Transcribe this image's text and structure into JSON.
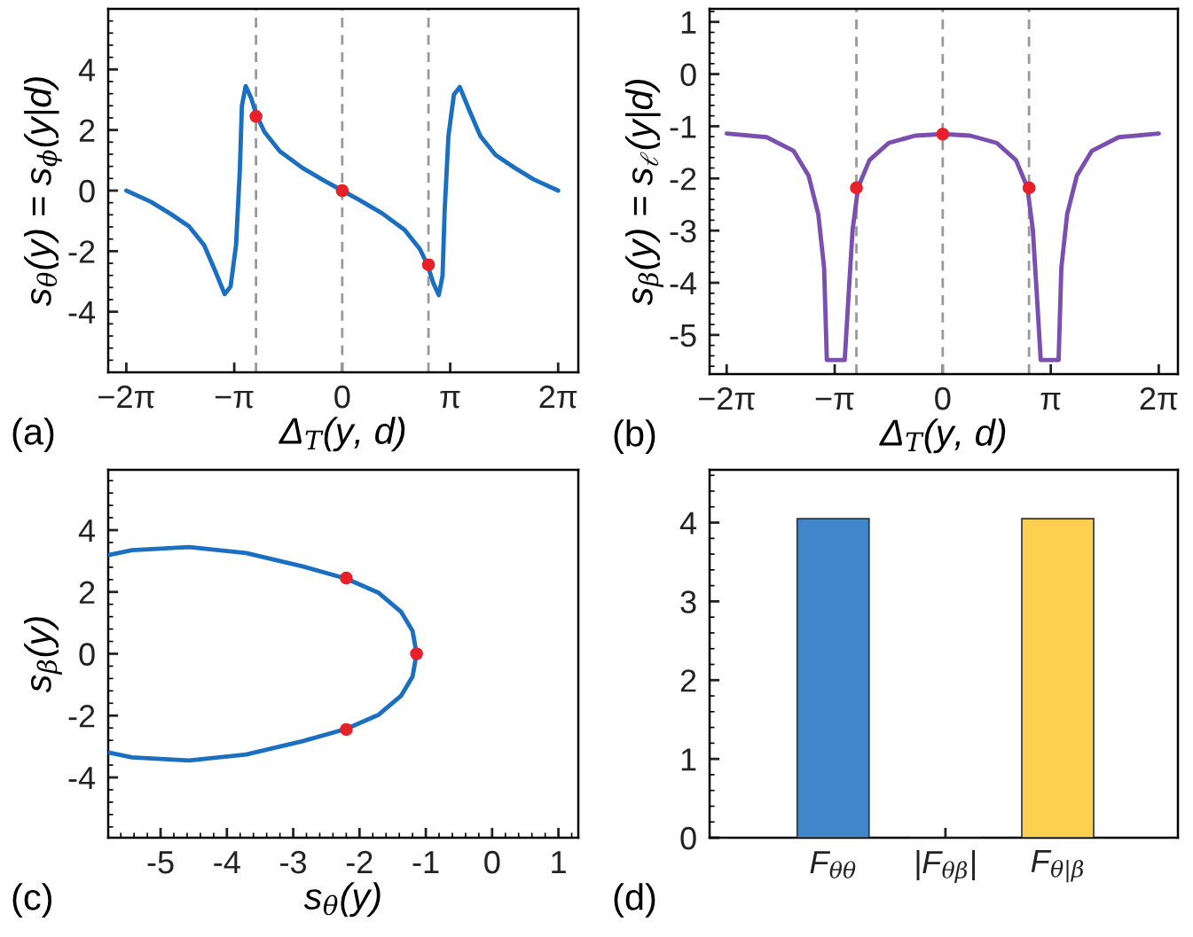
{
  "chart_data": [
    {
      "type": "line",
      "xlabel": "Δ$_{T}$(y, d)",
      "ylabel": "s$_{θ}$(y) = s$_{ϕ}$(y|d)",
      "annotations": [
        "(a)"
      ],
      "xlim": [
        -6.81,
        6.87
      ],
      "ylim": [
        -6,
        6
      ],
      "xticks": [
        {
          "value": -6.283,
          "label": "−2π"
        },
        {
          "value": -3.142,
          "label": "−π"
        },
        0,
        {
          "value": 3.142,
          "label": "π"
        },
        {
          "value": 6.283,
          "label": "2π"
        }
      ],
      "yticks": [
        -4,
        -2,
        0,
        2,
        4
      ],
      "grid": false,
      "ref_lines": [
        {
          "axis": "x",
          "value": -2.51,
          "color": "#999999",
          "line_style": "dashed"
        },
        {
          "axis": "x",
          "value": 0,
          "color": "#999999",
          "line_style": "dashed"
        },
        {
          "axis": "x",
          "value": 2.51,
          "color": "#999999",
          "line_style": "dashed"
        }
      ],
      "series": [
        {
          "type": "line",
          "color": "#1a6fc0",
          "x": [
            -6.283,
            -5.57,
            -5.02,
            -4.46,
            -4.02,
            -3.69,
            -3.42,
            -3.25,
            -3.09,
            -2.98,
            -2.92,
            -2.81,
            -2.65,
            -2.48,
            -2.26,
            -1.82,
            -1.16,
            -0.5,
            0,
            0.5,
            1.16,
            1.82,
            2.26,
            2.48,
            2.65,
            2.81,
            2.92,
            2.98,
            3.09,
            3.25,
            3.42,
            3.69,
            4.02,
            4.46,
            5.02,
            5.57,
            6.283
          ],
          "values": [
            0,
            -0.37,
            -0.75,
            -1.18,
            -1.8,
            -2.67,
            -3.42,
            -3.17,
            -1.8,
            0.68,
            2.8,
            3.45,
            3.05,
            2.45,
            1.93,
            1.3,
            0.75,
            0.31,
            0,
            -0.31,
            -0.75,
            -1.3,
            -1.93,
            -2.45,
            -3.05,
            -3.45,
            -2.8,
            -0.68,
            1.8,
            3.17,
            3.42,
            2.67,
            1.8,
            1.18,
            0.75,
            0.37,
            0
          ]
        },
        {
          "type": "scatter",
          "color": "#e8202a",
          "marker": "circle",
          "x": [
            -2.51,
            0,
            2.51
          ],
          "values": [
            2.45,
            0,
            -2.45
          ]
        }
      ]
    },
    {
      "type": "line",
      "xlabel": "Δ$_{T}$(y, d)",
      "ylabel": "s$_{β}$(y) = s$_{ℓ}$(y|d)",
      "annotations": [
        "(b)"
      ],
      "xlim": [
        -6.78,
        6.84
      ],
      "ylim": [
        -5.75,
        1.25
      ],
      "xticks": [
        {
          "value": -6.283,
          "label": "−2π"
        },
        {
          "value": -3.142,
          "label": "−π"
        },
        0,
        {
          "value": 3.142,
          "label": "π"
        },
        {
          "value": 6.283,
          "label": "2π"
        }
      ],
      "yticks": [
        -5,
        -4,
        -3,
        -2,
        -1,
        0,
        1
      ],
      "grid": false,
      "ref_lines": [
        {
          "axis": "x",
          "value": -2.51,
          "color": "#999999",
          "line_style": "dashed"
        },
        {
          "axis": "x",
          "value": 0,
          "color": "#999999",
          "line_style": "dashed"
        },
        {
          "axis": "x",
          "value": 2.51,
          "color": "#999999",
          "line_style": "dashed"
        }
      ],
      "series": [
        {
          "type": "line",
          "color": "#7b4fb0",
          "x": [
            -6.283,
            -5.12,
            -4.34,
            -3.9,
            -3.62,
            -3.45,
            -3.37,
            -2.85,
            -2.73,
            -2.62,
            -2.46,
            -2.13,
            -1.57,
            -0.8,
            0,
            0.8,
            1.57,
            2.13,
            2.46,
            2.62,
            2.73,
            2.85,
            3.37,
            3.45,
            3.62,
            3.9,
            4.34,
            5.12,
            6.283
          ],
          "values": [
            -1.14,
            -1.21,
            -1.47,
            -1.95,
            -2.68,
            -3.71,
            -5.48,
            -5.48,
            -4.15,
            -2.98,
            -2.17,
            -1.65,
            -1.32,
            -1.18,
            -1.15,
            -1.18,
            -1.32,
            -1.65,
            -2.17,
            -2.98,
            -4.15,
            -5.48,
            -5.48,
            -3.71,
            -2.68,
            -1.95,
            -1.47,
            -1.21,
            -1.14
          ]
        },
        {
          "type": "scatter",
          "color": "#e8202a",
          "marker": "circle",
          "x": [
            -2.51,
            0,
            2.51
          ],
          "values": [
            -2.18,
            -1.15,
            -2.18
          ]
        }
      ]
    },
    {
      "type": "line",
      "xlabel": "s$_{θ}$(y)",
      "ylabel": "s$_{β}$(y)",
      "annotations": [
        "(c)"
      ],
      "xlim": [
        -5.79,
        1.3
      ],
      "ylim": [
        -5.95,
        5.95
      ],
      "xticks": [
        -5,
        -4,
        -3,
        -2,
        -1,
        0,
        1
      ],
      "yticks": [
        -4,
        -2,
        0,
        2,
        4
      ],
      "grid": false,
      "series": [
        {
          "type": "line",
          "color": "#1a6fc0",
          "x": [
            -5.77,
            -5.43,
            -4.57,
            -3.71,
            -2.86,
            -2.2,
            -1.71,
            -1.37,
            -1.2,
            -1.14,
            -1.2,
            -1.37,
            -1.71,
            -2.2,
            -2.86,
            -3.71,
            -4.57,
            -5.43,
            -5.77
          ],
          "values": [
            3.2,
            3.35,
            3.45,
            3.26,
            2.83,
            2.43,
            1.97,
            1.35,
            0.74,
            0,
            -0.74,
            -1.35,
            -1.97,
            -2.43,
            -2.83,
            -3.26,
            -3.45,
            -3.35,
            -3.2
          ]
        },
        {
          "type": "scatter",
          "color": "#e8202a",
          "marker": "circle",
          "x": [
            -2.2,
            -1.14,
            -2.2
          ],
          "values": [
            2.45,
            0,
            -2.45
          ]
        }
      ]
    },
    {
      "type": "bar",
      "annotations": [
        "(d)"
      ],
      "categories": [
        "F$_{θθ}$",
        "|F$_{θβ}$|",
        "F$_{θ|β}$"
      ],
      "values": [
        4.05,
        0,
        4.05
      ],
      "colors": [
        "#4186c8",
        "#333333",
        "#fdd04f"
      ],
      "ylim": [
        0,
        4.67
      ],
      "yticks": [
        0,
        1,
        2,
        3,
        4
      ],
      "grid": false
    }
  ]
}
